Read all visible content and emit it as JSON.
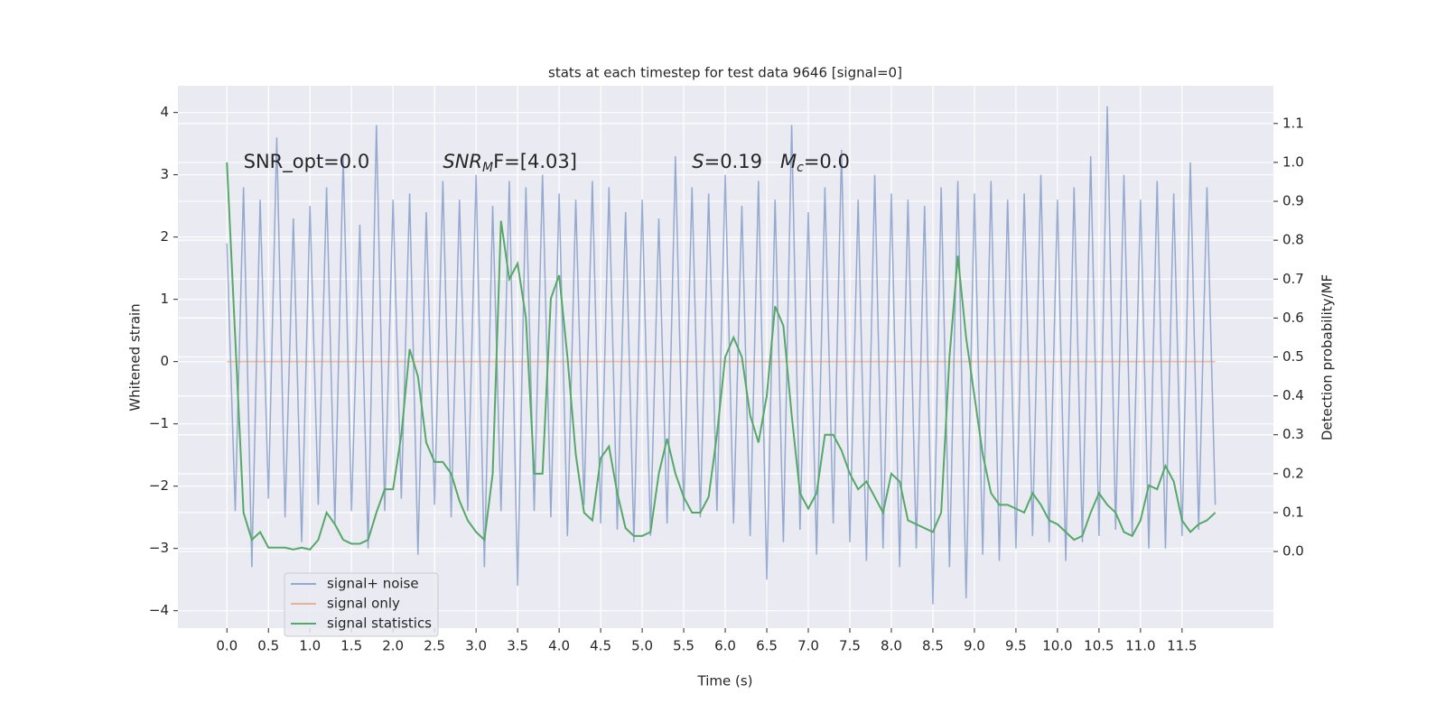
{
  "chart_data": {
    "type": "line",
    "title": "stats at each timestep for test data 9646 [signal=0]",
    "x_label": "Time (s)",
    "y_label": "Whitened strain",
    "y2_label": "Detection probability/MF",
    "annotations": [
      {
        "x": 0.2,
        "y2": 1.0,
        "parts": [
          "SNR_opt=0.0"
        ]
      },
      {
        "x": 2.6,
        "y2": 1.0,
        "parts": [
          "SNR",
          "M",
          "F=[4.03]"
        ]
      },
      {
        "x": 5.6,
        "y2": 1.0,
        "parts": [
          "S",
          "=0.19   ",
          "M",
          "c",
          "=0.0"
        ]
      }
    ],
    "xlim": [
      -0.59,
      12.6
    ],
    "ylim": [
      -4.28,
      4.43
    ],
    "y2lim": [
      -0.197,
      1.197
    ],
    "xticks": [
      {
        "value": 0,
        "label": "0.0"
      },
      0.5,
      {
        "value": 1,
        "label": "1.0"
      },
      1.5,
      {
        "value": 2,
        "label": "2.0"
      },
      2.5,
      {
        "value": 3,
        "label": "3.0"
      },
      3.5,
      {
        "value": 4,
        "label": "4.0"
      },
      4.5,
      {
        "value": 5,
        "label": "5.0"
      },
      5.5,
      {
        "value": 6,
        "label": "6.0"
      },
      6.5,
      {
        "value": 7,
        "label": "7.0"
      },
      7.5,
      {
        "value": 8,
        "label": "8.0"
      },
      8.5,
      {
        "value": 9,
        "label": "9.0"
      },
      9.5,
      {
        "value": 10,
        "label": "10.0"
      },
      10.5,
      {
        "value": 11,
        "label": "11.0"
      },
      11.5
    ],
    "yticks": [
      {
        "value": -4,
        "label": "−4"
      },
      {
        "value": -3,
        "label": "−3"
      },
      {
        "value": -2,
        "label": "−2"
      },
      {
        "value": -1,
        "label": "−1"
      },
      0,
      1,
      2,
      3,
      4
    ],
    "y2ticks": [
      {
        "value": 0,
        "label": "0.0"
      },
      0.1,
      0.2,
      0.3,
      0.4,
      0.5,
      0.6,
      0.7,
      0.8,
      0.9,
      {
        "value": 1,
        "label": "1.0"
      },
      1.1
    ],
    "grid": true,
    "legend": "lower left",
    "x": [
      0,
      0.1,
      0.2,
      0.3,
      0.4,
      0.5,
      0.6,
      0.7,
      0.8,
      0.9,
      1,
      1.1,
      1.2,
      1.3,
      1.4,
      1.5,
      1.6,
      1.7,
      1.8,
      1.9,
      2,
      2.1,
      2.2,
      2.3,
      2.4,
      2.5,
      2.6,
      2.7,
      2.8,
      2.9,
      3,
      3.1,
      3.2,
      3.3,
      3.4,
      3.5,
      3.6,
      3.7,
      3.8,
      3.9,
      4,
      4.1,
      4.2,
      4.3,
      4.4,
      4.5,
      4.6,
      4.7,
      4.8,
      4.9,
      5,
      5.1,
      5.2,
      5.3,
      5.4,
      5.5,
      5.6,
      5.7,
      5.8,
      5.9,
      6,
      6.1,
      6.2,
      6.3,
      6.4,
      6.5,
      6.6,
      6.7,
      6.8,
      6.9,
      7,
      7.1,
      7.2,
      7.3,
      7.4,
      7.5,
      7.6,
      7.7,
      7.8,
      7.9,
      8,
      8.1,
      8.2,
      8.3,
      8.4,
      8.5,
      8.6,
      8.7,
      8.8,
      8.9,
      9,
      9.1,
      9.2,
      9.3,
      9.4,
      9.5,
      9.6,
      9.7,
      9.8,
      9.9,
      10,
      10.1,
      10.2,
      10.3,
      10.4,
      10.5,
      10.6,
      10.7,
      10.8,
      10.9,
      11,
      11.1,
      11.2,
      11.3,
      11.4,
      11.5,
      11.6,
      11.7,
      11.8,
      11.9
    ],
    "series": [
      {
        "name": "signal+ noise",
        "color": "#4c72b0",
        "values": [
          1.9,
          -2.4,
          2.8,
          -3.3,
          2.6,
          -2.2,
          3.6,
          -2.5,
          2.3,
          -2.9,
          2.5,
          -2.3,
          2.8,
          -2.6,
          3.3,
          -2.4,
          2.2,
          -3.0,
          3.8,
          -2.4,
          2.6,
          -2.2,
          2.7,
          -3.1,
          2.4,
          -2.3,
          2.9,
          -2.5,
          2.6,
          -2.4,
          3.0,
          -3.3,
          2.5,
          -2.4,
          2.9,
          -3.6,
          2.8,
          -2.4,
          3.0,
          -2.5,
          2.7,
          -2.8,
          2.6,
          -2.3,
          2.9,
          -2.6,
          2.8,
          -2.7,
          2.4,
          -2.9,
          2.6,
          -2.8,
          2.3,
          -2.6,
          3.3,
          -2.4,
          2.8,
          -2.5,
          2.7,
          -2.4,
          3.0,
          -2.6,
          2.5,
          -2.8,
          2.9,
          -3.5,
          2.6,
          -2.9,
          3.8,
          -2.7,
          2.4,
          -3.1,
          2.8,
          -2.6,
          3.4,
          -2.9,
          2.6,
          -3.2,
          3.0,
          -3.0,
          2.7,
          -3.3,
          2.6,
          -3.0,
          2.5,
          -3.9,
          2.8,
          -3.3,
          2.9,
          -3.8,
          2.7,
          -3.1,
          2.9,
          -3.2,
          2.6,
          -3.0,
          2.7,
          -2.8,
          3.0,
          -2.9,
          2.6,
          -3.2,
          2.8,
          -2.9,
          3.3,
          -2.8,
          4.1,
          -2.7,
          3.0,
          -2.8,
          2.6,
          -3.0,
          2.9,
          -3.0,
          2.7,
          -2.8,
          3.2,
          -2.7,
          2.8,
          -2.3
        ]
      },
      {
        "name": "signal only",
        "color": "#dd8452",
        "values": [
          0,
          0,
          0,
          0,
          0,
          0,
          0,
          0,
          0,
          0,
          0,
          0,
          0,
          0,
          0,
          0,
          0,
          0,
          0,
          0,
          0,
          0,
          0,
          0,
          0,
          0,
          0,
          0,
          0,
          0,
          0,
          0,
          0,
          0,
          0,
          0,
          0,
          0,
          0,
          0,
          0,
          0,
          0,
          0,
          0,
          0,
          0,
          0,
          0,
          0,
          0,
          0,
          0,
          0,
          0,
          0,
          0,
          0,
          0,
          0,
          0,
          0,
          0,
          0,
          0,
          0,
          0,
          0,
          0,
          0,
          0,
          0,
          0,
          0,
          0,
          0,
          0,
          0,
          0,
          0,
          0,
          0,
          0,
          0,
          0,
          0,
          0,
          0,
          0,
          0,
          0,
          0,
          0,
          0,
          0,
          0,
          0,
          0,
          0,
          0,
          0,
          0,
          0,
          0,
          0,
          0,
          0,
          0,
          0,
          0,
          0,
          0,
          0,
          0,
          0,
          0,
          0,
          0,
          0,
          0
        ]
      },
      {
        "name": "signal statistics",
        "color": "#55a868",
        "axis": "y2",
        "values": [
          1.0,
          0.55,
          0.1,
          0.03,
          0.05,
          0.01,
          0.01,
          0.01,
          0.005,
          0.01,
          0.005,
          0.03,
          0.1,
          0.07,
          0.03,
          0.02,
          0.02,
          0.03,
          0.1,
          0.16,
          0.16,
          0.3,
          0.52,
          0.45,
          0.28,
          0.23,
          0.23,
          0.2,
          0.13,
          0.08,
          0.05,
          0.03,
          0.2,
          0.85,
          0.7,
          0.74,
          0.6,
          0.2,
          0.2,
          0.65,
          0.71,
          0.5,
          0.25,
          0.1,
          0.08,
          0.24,
          0.27,
          0.15,
          0.06,
          0.04,
          0.04,
          0.05,
          0.2,
          0.29,
          0.2,
          0.14,
          0.1,
          0.1,
          0.14,
          0.3,
          0.5,
          0.55,
          0.5,
          0.35,
          0.28,
          0.4,
          0.63,
          0.58,
          0.35,
          0.15,
          0.11,
          0.15,
          0.3,
          0.3,
          0.26,
          0.2,
          0.16,
          0.18,
          0.14,
          0.1,
          0.2,
          0.18,
          0.08,
          0.07,
          0.06,
          0.05,
          0.1,
          0.5,
          0.76,
          0.55,
          0.4,
          0.25,
          0.15,
          0.12,
          0.12,
          0.11,
          0.1,
          0.15,
          0.12,
          0.08,
          0.07,
          0.05,
          0.03,
          0.04,
          0.1,
          0.15,
          0.12,
          0.1,
          0.05,
          0.04,
          0.08,
          0.17,
          0.16,
          0.22,
          0.18,
          0.08,
          0.05,
          0.07,
          0.08,
          0.1
        ]
      }
    ]
  }
}
